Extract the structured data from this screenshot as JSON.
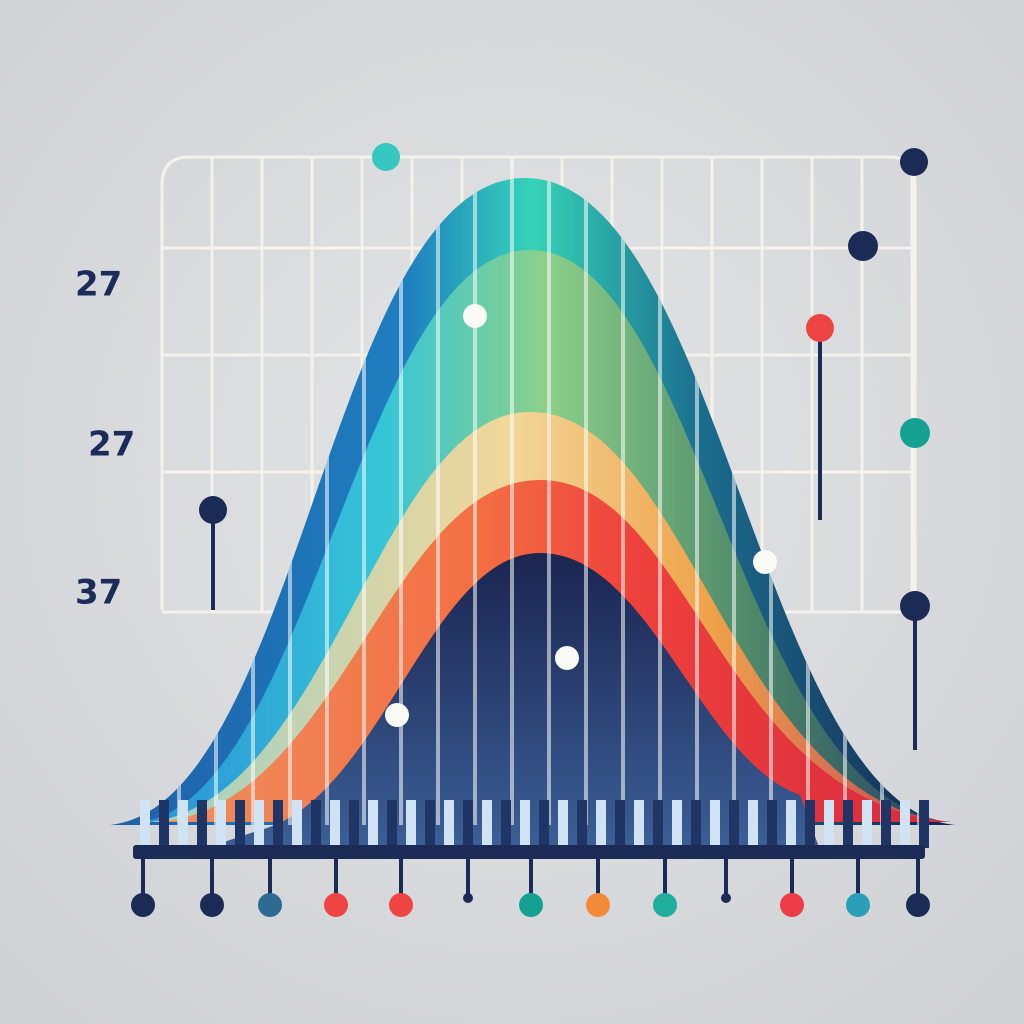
{
  "labels": [
    "27",
    "27",
    "37"
  ]
}
